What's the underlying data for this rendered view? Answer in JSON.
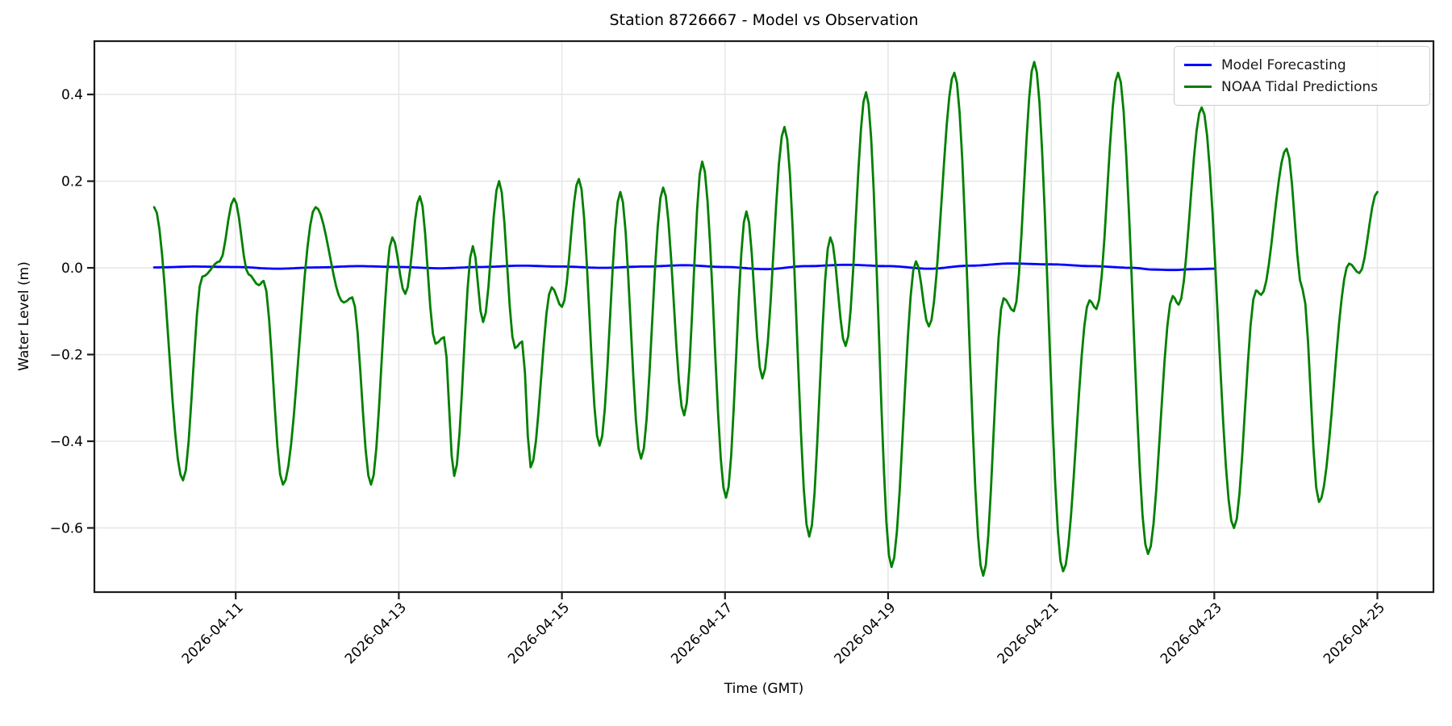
{
  "title": "Station 8726667 - Model vs Observation",
  "xlabel": "Time (GMT)",
  "ylabel": "Water Level (m)",
  "legend": {
    "items": [
      {
        "label": "Model Forecasting",
        "color": "#0000ff"
      },
      {
        "label": "NOAA Tidal Predictions",
        "color": "#008000"
      }
    ]
  },
  "colors": {
    "model": "#0000ff",
    "noaa": "#008000",
    "grid": "#e7e7e7",
    "spine": "#1c1c1c",
    "text": "#000000"
  },
  "chart_data": {
    "type": "line",
    "title": "Station 8726667 - Model vs Observation",
    "xlabel": "Time (GMT)",
    "ylabel": "Water Level (m)",
    "grid": true,
    "legend_position": "upper right",
    "time_unit": "hours since 2026-04-10 00:00 GMT",
    "xlim_hours": [
      -17.6,
      376.5
    ],
    "ylim": [
      -0.748,
      0.523
    ],
    "x_ticks": [
      {
        "label": "2026-04-11",
        "t": 24
      },
      {
        "label": "2026-04-13",
        "t": 72
      },
      {
        "label": "2026-04-15",
        "t": 120
      },
      {
        "label": "2026-04-17",
        "t": 168
      },
      {
        "label": "2026-04-19",
        "t": 216
      },
      {
        "label": "2026-04-21",
        "t": 264
      },
      {
        "label": "2026-04-23",
        "t": 312
      },
      {
        "label": "2026-04-25",
        "t": 360
      }
    ],
    "y_ticks": [
      {
        "label": "0.4",
        "v": 0.4
      },
      {
        "label": "0.2",
        "v": 0.2
      },
      {
        "label": "0.0",
        "v": 0.0
      },
      {
        "label": "−0.2",
        "v": -0.2
      },
      {
        "label": "−0.4",
        "v": -0.4
      },
      {
        "label": "−0.6",
        "v": -0.6
      }
    ],
    "series": [
      {
        "name": "Model Forecasting",
        "color": "#0000ff",
        "points": [
          [
            0,
            0.001
          ],
          [
            12,
            0.003
          ],
          [
            24,
            0.002
          ],
          [
            36,
            -0.002
          ],
          [
            48,
            0.001
          ],
          [
            60,
            0.004
          ],
          [
            72,
            0.002
          ],
          [
            84,
            -0.001
          ],
          [
            96,
            0.002
          ],
          [
            108,
            0.005
          ],
          [
            120,
            0.003
          ],
          [
            132,
            0.0
          ],
          [
            144,
            0.003
          ],
          [
            156,
            0.006
          ],
          [
            168,
            0.002
          ],
          [
            180,
            -0.003
          ],
          [
            192,
            0.004
          ],
          [
            204,
            0.007
          ],
          [
            216,
            0.004
          ],
          [
            228,
            -0.002
          ],
          [
            240,
            0.005
          ],
          [
            252,
            0.01
          ],
          [
            264,
            0.008
          ],
          [
            276,
            0.004
          ],
          [
            288,
            0.0
          ],
          [
            294,
            -0.004
          ],
          [
            300,
            -0.005
          ],
          [
            306,
            -0.003
          ],
          [
            312,
            -0.002
          ]
        ]
      },
      {
        "name": "NOAA Tidal Predictions",
        "color": "#008000",
        "points": [
          [
            0,
            0.14
          ],
          [
            8.5,
            -0.49
          ],
          [
            14.2,
            -0.02
          ],
          [
            19.3,
            0.015
          ],
          [
            23.5,
            0.16
          ],
          [
            27.8,
            -0.015
          ],
          [
            30.8,
            -0.04
          ],
          [
            32.2,
            -0.03
          ],
          [
            37.9,
            -0.5
          ],
          [
            47.5,
            0.14
          ],
          [
            55.8,
            -0.08
          ],
          [
            58.3,
            -0.068
          ],
          [
            63.8,
            -0.5
          ],
          [
            70.1,
            0.07
          ],
          [
            73.9,
            -0.06
          ],
          [
            78.2,
            0.165
          ],
          [
            82.8,
            -0.175
          ],
          [
            85.3,
            -0.16
          ],
          [
            88.3,
            -0.48
          ],
          [
            93.8,
            0.05
          ],
          [
            96.8,
            -0.125
          ],
          [
            101.5,
            0.2
          ],
          [
            106.2,
            -0.185
          ],
          [
            108.3,
            -0.17
          ],
          [
            110.8,
            -0.46
          ],
          [
            117,
            -0.045
          ],
          [
            120,
            -0.09
          ],
          [
            125,
            0.205
          ],
          [
            131.1,
            -0.41
          ],
          [
            137.2,
            0.175
          ],
          [
            143.3,
            -0.44
          ],
          [
            149.8,
            0.185
          ],
          [
            156,
            -0.34
          ],
          [
            161.3,
            0.245
          ],
          [
            168.3,
            -0.53
          ],
          [
            174.3,
            0.13
          ],
          [
            179,
            -0.255
          ],
          [
            185.5,
            0.325
          ],
          [
            192.8,
            -0.62
          ],
          [
            199,
            0.07
          ],
          [
            203.5,
            -0.18
          ],
          [
            209.5,
            0.405
          ],
          [
            217,
            -0.69
          ],
          [
            224.2,
            0.015
          ],
          [
            228,
            -0.135
          ],
          [
            235.5,
            0.45
          ],
          [
            244,
            -0.71
          ],
          [
            250,
            -0.07
          ],
          [
            253,
            -0.1
          ],
          [
            259,
            0.475
          ],
          [
            267.5,
            -0.7
          ],
          [
            275.3,
            -0.075
          ],
          [
            277.3,
            -0.095
          ],
          [
            283.7,
            0.45
          ],
          [
            292.5,
            -0.66
          ],
          [
            299.8,
            -0.065
          ],
          [
            301.5,
            -0.085
          ],
          [
            308.3,
            0.37
          ],
          [
            317.8,
            -0.6
          ],
          [
            324.3,
            -0.052
          ],
          [
            325.8,
            -0.062
          ],
          [
            333.3,
            0.275
          ],
          [
            338,
            -0.05
          ],
          [
            342.8,
            -0.54
          ],
          [
            351.7,
            0.01
          ],
          [
            354.7,
            -0.012
          ],
          [
            360,
            0.175
          ]
        ]
      }
    ]
  }
}
